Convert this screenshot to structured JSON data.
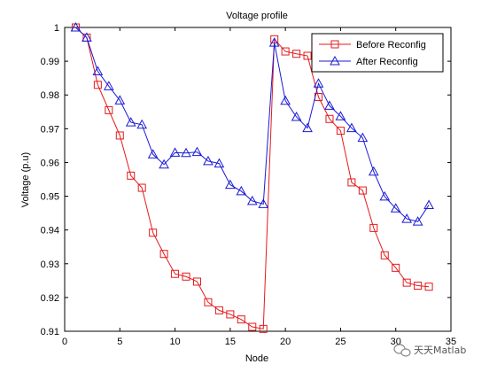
{
  "chart_data": {
    "type": "line",
    "title": "Voltage profile",
    "xlabel": "Node",
    "ylabel": "Voltage (p.u)",
    "xlim": [
      0,
      35
    ],
    "ylim": [
      0.91,
      1.0
    ],
    "xticks": [
      0,
      5,
      10,
      15,
      20,
      25,
      30,
      35
    ],
    "yticks": [
      0.91,
      0.92,
      0.93,
      0.94,
      0.95,
      0.96,
      0.97,
      0.98,
      0.99,
      1.0
    ],
    "xtick_labels": [
      "0",
      "5",
      "10",
      "15",
      "20",
      "25",
      "30",
      "35"
    ],
    "ytick_labels": [
      "0.91",
      "0.92",
      "0.93",
      "0.94",
      "0.95",
      "0.96",
      "0.97",
      "0.98",
      "0.99",
      "1"
    ],
    "grid": false,
    "legend_position": "top-right",
    "x": [
      1,
      2,
      3,
      4,
      5,
      6,
      7,
      8,
      9,
      10,
      11,
      12,
      13,
      14,
      15,
      16,
      17,
      18,
      19,
      20,
      21,
      22,
      23,
      24,
      25,
      26,
      27,
      28,
      29,
      30,
      31,
      32,
      33
    ],
    "series": [
      {
        "name": "Before Reconfig",
        "color": "#e41a1c",
        "marker": "square",
        "values": [
          1.0,
          0.997,
          0.983,
          0.9755,
          0.968,
          0.9561,
          0.9525,
          0.9392,
          0.9329,
          0.927,
          0.9262,
          0.9247,
          0.9186,
          0.9162,
          0.915,
          0.9135,
          0.9113,
          0.9107,
          0.9965,
          0.9929,
          0.9922,
          0.9916,
          0.9794,
          0.9729,
          0.9694,
          0.9541,
          0.9517,
          0.9406,
          0.9325,
          0.9288,
          0.9244,
          0.9235,
          0.9232
        ]
      },
      {
        "name": "After Reconfig",
        "color": "#1a1ad6",
        "marker": "triangle",
        "values": [
          1.0,
          0.997,
          0.987,
          0.9826,
          0.9784,
          0.9719,
          0.9712,
          0.9624,
          0.9594,
          0.9629,
          0.9628,
          0.9631,
          0.9604,
          0.9597,
          0.9534,
          0.9515,
          0.9486,
          0.9477,
          0.9955,
          0.9783,
          0.9735,
          0.9702,
          0.9834,
          0.9768,
          0.9737,
          0.9702,
          0.9673,
          0.9573,
          0.9499,
          0.9464,
          0.9433,
          0.9425,
          0.9474
        ]
      }
    ]
  },
  "watermark": {
    "text": "天天Matlab",
    "icon": "wechat-bubble-icon"
  }
}
